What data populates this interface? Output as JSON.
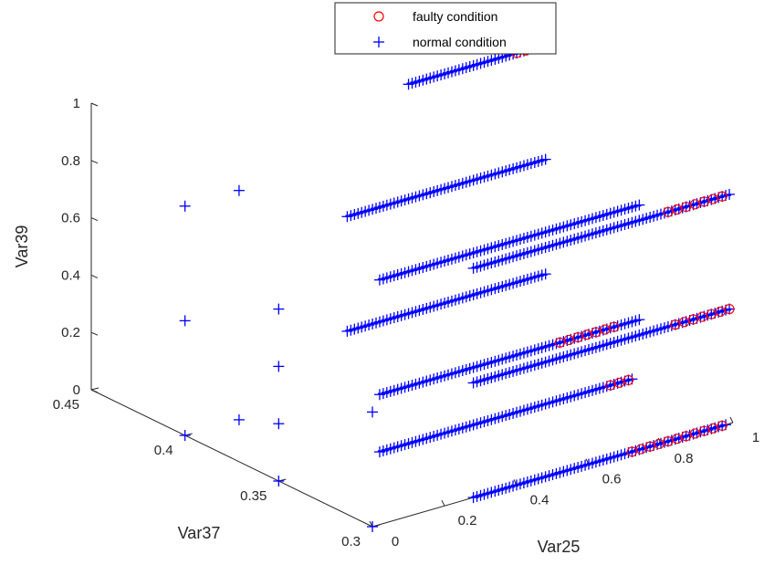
{
  "chart_data": {
    "type": "scatter3d",
    "xlabel": "Var25",
    "ylabel": "Var37",
    "zlabel": "Var39",
    "xlim": [
      0,
      1
    ],
    "ylim": [
      0.3,
      0.45
    ],
    "zlim": [
      0,
      1
    ],
    "xticks": [
      "0",
      "0.2",
      "0.4",
      "0.6",
      "0.8",
      "1"
    ],
    "yticks": [
      "0.3",
      "0.35",
      "0.4",
      "0.45"
    ],
    "zticks": [
      "0",
      "0.2",
      "0.4",
      "0.6",
      "0.8",
      "1"
    ],
    "legend_position": "top-center",
    "grid": false,
    "series": [
      {
        "name": "faulty condition",
        "marker": "circle",
        "color": "#ff0000",
        "segments": [
          {
            "y": 0.4,
            "z": 1.0,
            "x_from": 0.92,
            "x_to": 0.98
          },
          {
            "y": 0.3,
            "z": 0.8,
            "x_from": 0.82,
            "x_to": 0.99
          },
          {
            "y": 0.3,
            "z": 0.4,
            "x_from": 0.84,
            "x_to": 0.99
          },
          {
            "y": 0.3,
            "z": 0.0,
            "x_from": 0.72,
            "x_to": 0.98
          },
          {
            "y": 0.35,
            "z": 0.2,
            "x_from": 0.78,
            "x_to": 0.93
          },
          {
            "y": 0.35,
            "z": 0.0,
            "x_from": 0.92,
            "x_to": 0.98
          }
        ]
      },
      {
        "name": "normal condition",
        "marker": "plus",
        "color": "#0000ff",
        "segments": [
          {
            "y": 0.4,
            "z": 1.0,
            "x_from": 0.62,
            "x_to": 0.98
          },
          {
            "y": 0.4,
            "z": 0.6,
            "x_from": 0.45,
            "x_to": 1.0
          },
          {
            "y": 0.4,
            "z": 0.2,
            "x_from": 0.45,
            "x_to": 1.0
          },
          {
            "y": 0.35,
            "z": 0.6,
            "x_from": 0.28,
            "x_to": 1.0
          },
          {
            "y": 0.35,
            "z": 0.2,
            "x_from": 0.28,
            "x_to": 1.0
          },
          {
            "y": 0.35,
            "z": 0.0,
            "x_from": 0.28,
            "x_to": 0.98
          },
          {
            "y": 0.3,
            "z": 0.8,
            "x_from": 0.28,
            "x_to": 0.99
          },
          {
            "y": 0.3,
            "z": 0.4,
            "x_from": 0.28,
            "x_to": 0.99
          },
          {
            "y": 0.3,
            "z": 0.0,
            "x_from": 0.28,
            "x_to": 0.98
          }
        ],
        "points": [
          {
            "x": 0.0,
            "y": 0.4,
            "z": 0.8
          },
          {
            "x": 0.0,
            "y": 0.4,
            "z": 0.4
          },
          {
            "x": 0.0,
            "y": 0.4,
            "z": 0.0
          },
          {
            "x": 0.15,
            "y": 0.4,
            "z": 0.8
          },
          {
            "x": 0.15,
            "y": 0.4,
            "z": 0.0
          },
          {
            "x": 0.0,
            "y": 0.35,
            "z": 0.6
          },
          {
            "x": 0.0,
            "y": 0.35,
            "z": 0.4
          },
          {
            "x": 0.0,
            "y": 0.35,
            "z": 0.2
          },
          {
            "x": 0.0,
            "y": 0.35,
            "z": 0.0
          },
          {
            "x": 0.0,
            "y": 0.3,
            "z": 0.4
          },
          {
            "x": 0.0,
            "y": 0.3,
            "z": 0.0
          }
        ]
      }
    ]
  },
  "colors": {
    "faulty": "#ff0000",
    "normal": "#0000ff",
    "axis": "#262626"
  }
}
